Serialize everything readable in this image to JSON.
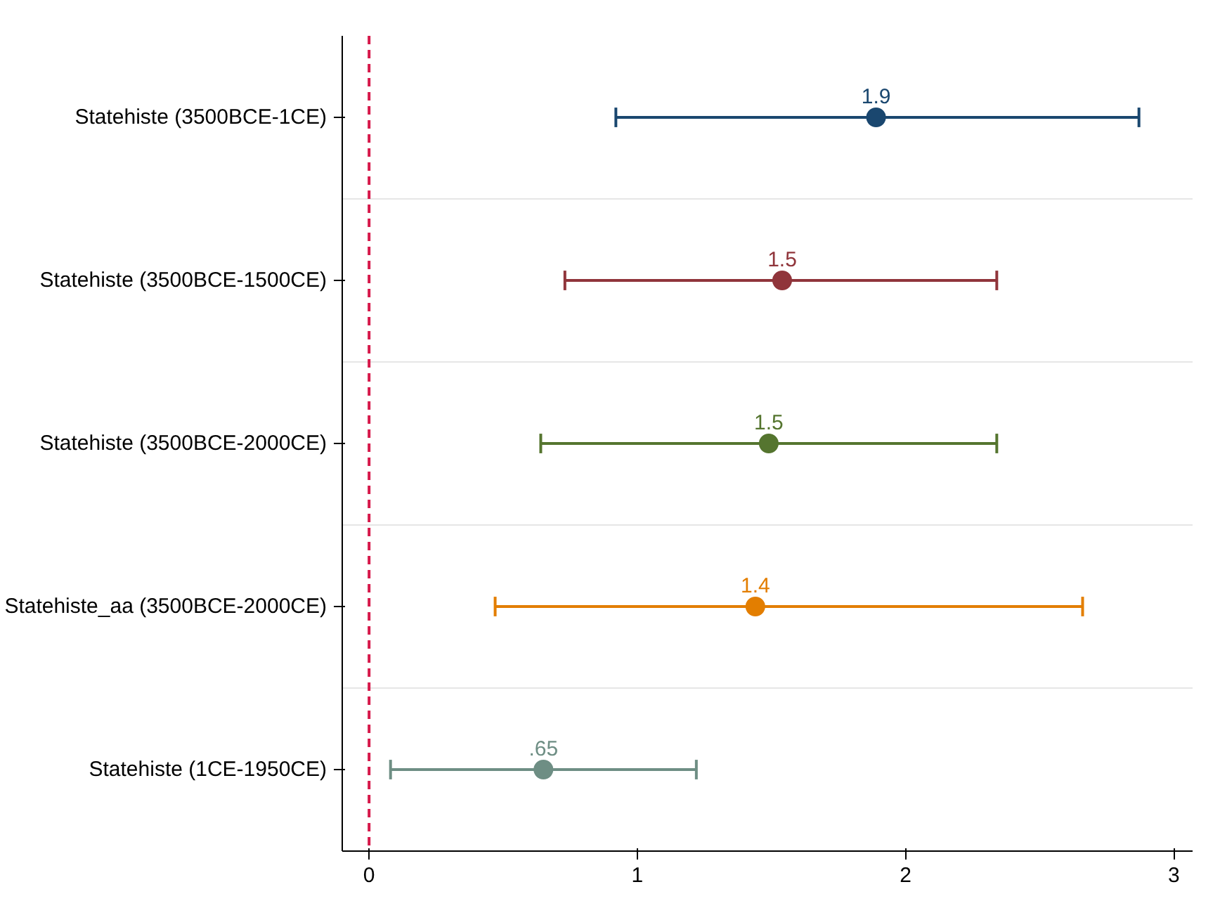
{
  "chart_data": {
    "type": "scatter",
    "orientation": "horizontal",
    "categories": [
      "Statehiste (3500BCE-1CE)",
      "Statehiste (3500BCE-1500CE)",
      "Statehiste (3500BCE-2000CE)",
      "Statehiste_aa (3500BCE-2000CE)",
      "Statehiste (1CE-1950CE)"
    ],
    "values": [
      1.89,
      1.54,
      1.49,
      1.44,
      0.65
    ],
    "colors": [
      "#1a476f",
      "#90353b",
      "#55752f",
      "#e37e00",
      "#6e8e84"
    ],
    "errors": [
      [
        0.92,
        2.87
      ],
      [
        0.73,
        2.34
      ],
      [
        0.64,
        2.34
      ],
      [
        0.47,
        2.66
      ],
      [
        0.08,
        1.22
      ]
    ],
    "value_labels": [
      "1.9",
      "1.5",
      "1.5",
      "1.4",
      ".65"
    ],
    "xlim": [
      -0.1,
      3.07
    ],
    "xticks": [
      0,
      1,
      2,
      3
    ],
    "ref_lines": [
      {
        "axis": "x",
        "value": 0,
        "color": "#d6184a",
        "line_style": "dashed"
      }
    ],
    "grid": "y",
    "marker": "circle"
  }
}
